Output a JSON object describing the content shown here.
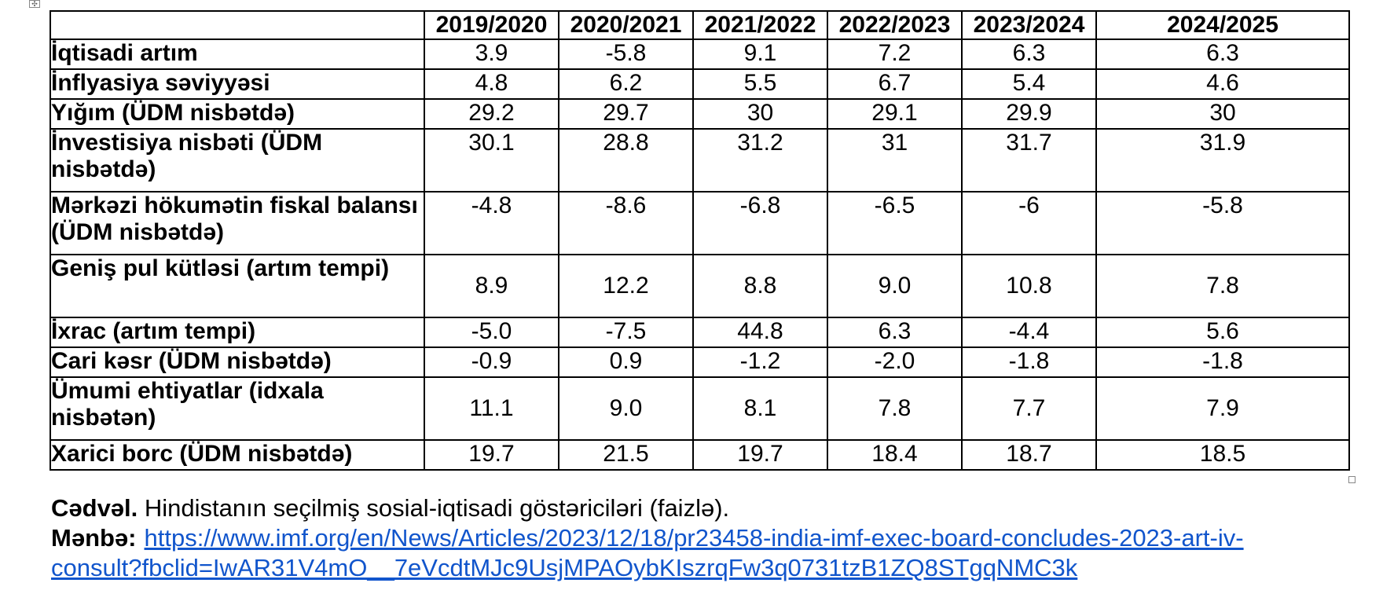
{
  "table": {
    "corner": "",
    "years": [
      "2019/2020",
      "2020/2021",
      "2021/2022",
      "2022/2023",
      "2023/2024",
      "2024/2025"
    ],
    "rows": [
      {
        "label": "İqtisadi artım",
        "values": [
          "3.9",
          "-5.8",
          "9.1",
          "7.2",
          "6.3",
          "6.3"
        ]
      },
      {
        "label": "İnflyasiya səviyyəsi",
        "values": [
          "4.8",
          "6.2",
          "5.5",
          "6.7",
          "5.4",
          "4.6"
        ]
      },
      {
        "label": "Yığım (ÜDM nisbətdə)",
        "values": [
          "29.2",
          "29.7",
          "30",
          "29.1",
          "29.9",
          "30"
        ]
      },
      {
        "label": "İnvestisiya nisbəti (ÜDM nisbətdə)",
        "values": [
          "30.1",
          "28.8",
          "31.2",
          "31",
          "31.7",
          "31.9"
        ]
      },
      {
        "label": "Mərkəzi hökumətin fiskal balansı (ÜDM nisbətdə)",
        "values": [
          "-4.8",
          "-8.6",
          "-6.8",
          "-6.5",
          "-6",
          "-5.8"
        ]
      },
      {
        "label": "Geniş pul kütləsi (artım tempi)",
        "values": [
          "8.9",
          "12.2",
          "8.8",
          "9.0",
          "10.8",
          "7.8"
        ]
      },
      {
        "label": "İxrac (artım tempi)",
        "values": [
          "-5.0",
          "-7.5",
          "44.8",
          "6.3",
          "-4.4",
          "5.6"
        ]
      },
      {
        "label": "Cari kəsr (ÜDM nisbətdə)",
        "values": [
          "-0.9",
          "0.9",
          "-1.2",
          "-2.0",
          "-1.8",
          "-1.8"
        ]
      },
      {
        "label": "Ümumi ehtiyatlar (idxala nisbətən)",
        "values": [
          "11.1",
          "9.0",
          "8.1",
          "7.8",
          "7.7",
          "7.9"
        ]
      },
      {
        "label": "Xarici borc (ÜDM nisbətdə)",
        "values": [
          "19.7",
          "21.5",
          "19.7",
          "18.4",
          "18.7",
          "18.5"
        ]
      }
    ]
  },
  "caption": {
    "label": "Cədvəl.",
    "text": " Hindistanın seçilmiş sosial-iqtisadi göstəriciləri (faizlə).",
    "source_label": "Mənbə:",
    "source_url_line1": "https://www.imf.org/en/News/Articles/2023/12/18/pr23458-india-imf-exec-board-concludes-2023-art-iv-",
    "source_url_line2": "consult?fbclid=IwAR31V4mO__7eVcdtMJc9UsjMPAOybKIszrqFw3q0731tzB1ZQ8STgqNMC3k"
  },
  "icons": {
    "table_anchor": "move-anchor-icon"
  }
}
